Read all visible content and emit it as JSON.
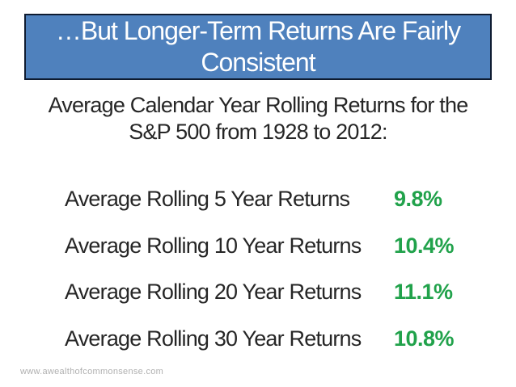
{
  "slide": {
    "title": "…But Longer-Term Returns Are Fairly\nConsistent",
    "subtitle": "Average Calendar Year Rolling Returns for the\nS&P 500 from 1928 to 2012:",
    "rows": [
      {
        "label": "Average Rolling 5 Year Returns",
        "value": "9.8%"
      },
      {
        "label": "Average Rolling 10 Year Returns",
        "value": "10.4%"
      },
      {
        "label": "Average Rolling 20 Year Returns",
        "value": "11.1%"
      },
      {
        "label": "Average Rolling 30 Year Returns",
        "value": "10.8%"
      }
    ],
    "footer": "www.awealthofcommonsense.com",
    "colors": {
      "background": "#ffffff",
      "title_bg": "#4f81bd",
      "title_border": "#0e1b30",
      "title_text": "#ffffff",
      "body_text": "#262626",
      "value_green": "#21a24b",
      "footer_gray": "#b0b0b0"
    }
  }
}
